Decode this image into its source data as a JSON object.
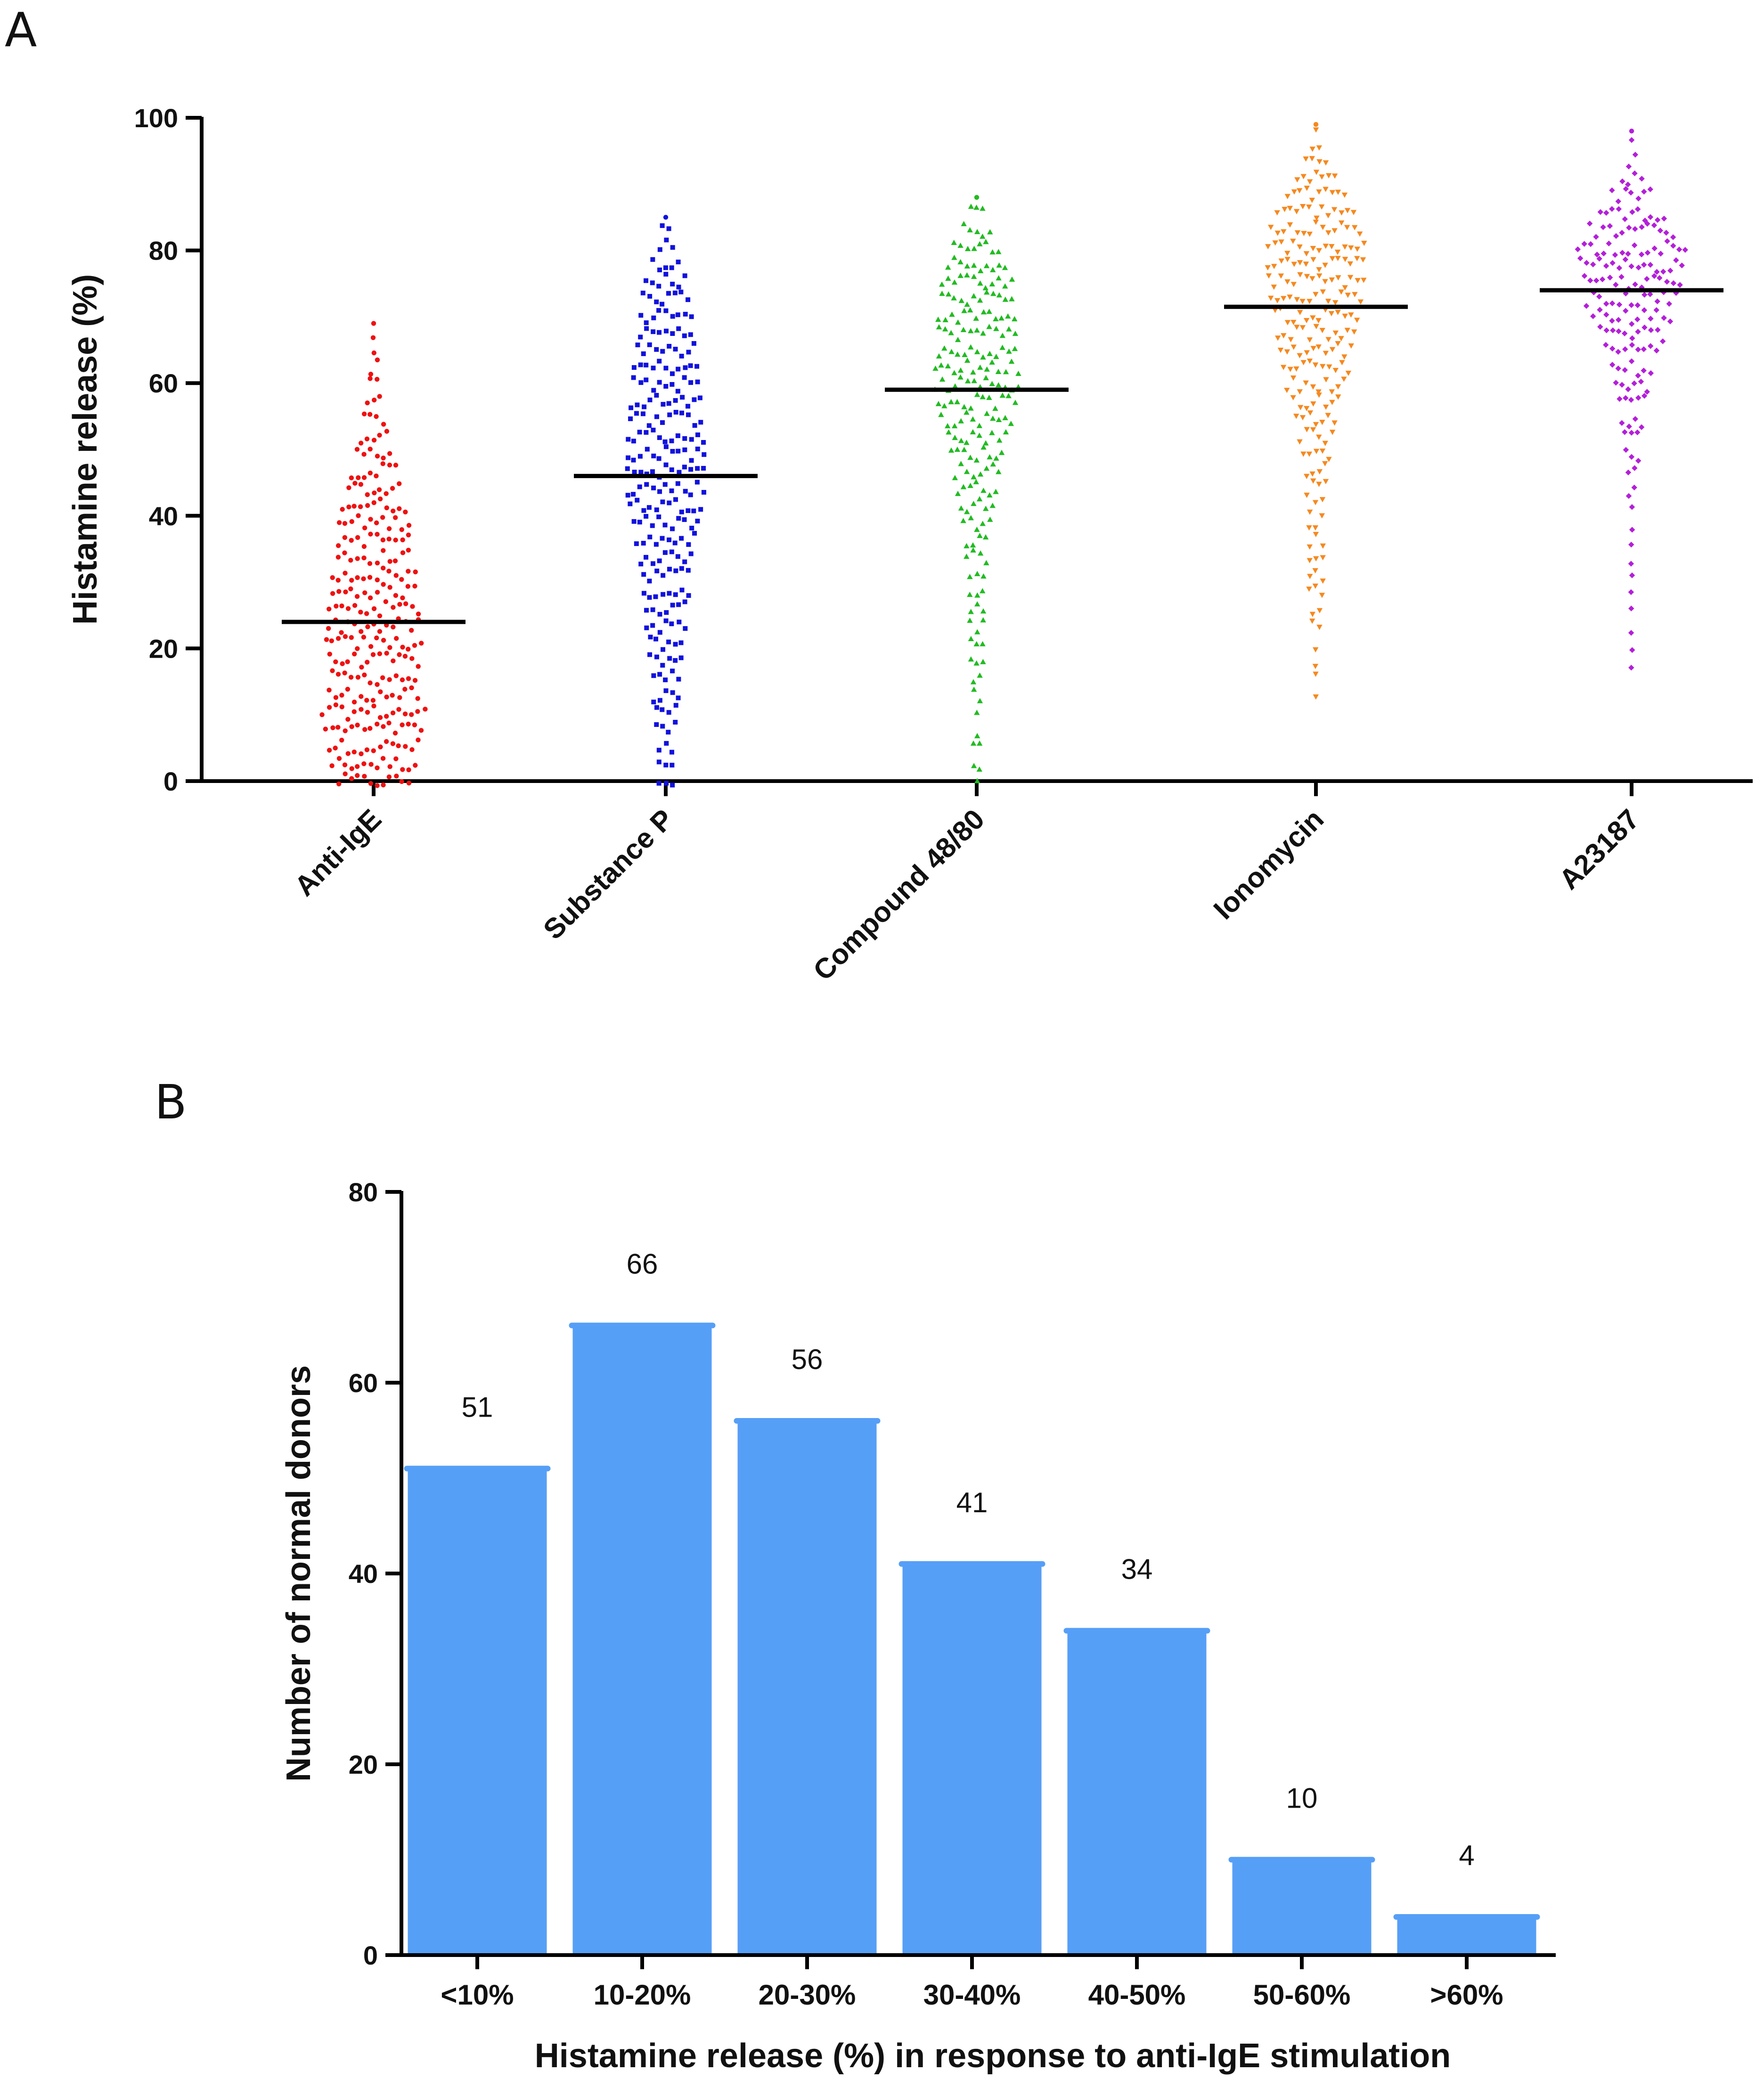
{
  "panels": {
    "a_label": "A",
    "b_label": "B"
  },
  "colors": {
    "axis": "#000000",
    "bar": "#569ff7",
    "median_line": "#000000"
  },
  "chart_data": [
    {
      "id": "A",
      "type": "scatter",
      "subtype": "dot-strip (beeswarm) with median line",
      "ylabel": "Histamine release (%)",
      "ylim": [
        0,
        100
      ],
      "yticks": [
        0,
        20,
        40,
        60,
        80,
        100
      ],
      "groups": [
        {
          "name": "Anti-IgE",
          "color": "#ee1111",
          "marker": "circle",
          "median": 24,
          "min": 0,
          "max": 69,
          "n": 262,
          "profile": [
            [
              0,
              12
            ],
            [
              5,
              15
            ],
            [
              10,
              17
            ],
            [
              15,
              14
            ],
            [
              20,
              16
            ],
            [
              25,
              15
            ],
            [
              30,
              14
            ],
            [
              35,
              12
            ],
            [
              40,
              12
            ],
            [
              45,
              9
            ],
            [
              50,
              6
            ],
            [
              55,
              4
            ],
            [
              60,
              2
            ],
            [
              65,
              1
            ],
            [
              69,
              1
            ]
          ]
        },
        {
          "name": "Substance P",
          "color": "#1111dd",
          "marker": "square",
          "median": 46,
          "min": 0,
          "max": 85,
          "n": 262,
          "profile": [
            [
              0,
              3
            ],
            [
              5,
              3
            ],
            [
              10,
              4
            ],
            [
              15,
              5
            ],
            [
              20,
              6
            ],
            [
              25,
              7
            ],
            [
              30,
              8
            ],
            [
              35,
              9
            ],
            [
              40,
              11
            ],
            [
              45,
              13
            ],
            [
              50,
              13
            ],
            [
              55,
              12
            ],
            [
              60,
              11
            ],
            [
              65,
              10
            ],
            [
              70,
              9
            ],
            [
              75,
              7
            ],
            [
              80,
              3
            ],
            [
              85,
              1
            ]
          ]
        },
        {
          "name": "Compound 48/80",
          "color": "#22bb22",
          "marker": "triangle-up",
          "median": 59,
          "min": 0,
          "max": 88,
          "n": 262,
          "profile": [
            [
              0,
              1
            ],
            [
              5,
              2
            ],
            [
              10,
              1
            ],
            [
              15,
              2
            ],
            [
              20,
              3
            ],
            [
              25,
              3
            ],
            [
              30,
              3
            ],
            [
              35,
              4
            ],
            [
              40,
              5
            ],
            [
              45,
              7
            ],
            [
              50,
              9
            ],
            [
              55,
              12
            ],
            [
              60,
              14
            ],
            [
              65,
              13
            ],
            [
              70,
              13
            ],
            [
              75,
              12
            ],
            [
              80,
              8
            ],
            [
              85,
              4
            ],
            [
              88,
              1
            ]
          ]
        },
        {
          "name": "Ionomycin",
          "color": "#f5891f",
          "marker": "triangle-down",
          "median": 71.5,
          "min": 13,
          "max": 99,
          "n": 262,
          "profile": [
            [
              13,
              1
            ],
            [
              20,
              1
            ],
            [
              25,
              2
            ],
            [
              30,
              3
            ],
            [
              35,
              3
            ],
            [
              40,
              3
            ],
            [
              45,
              4
            ],
            [
              50,
              5
            ],
            [
              55,
              7
            ],
            [
              60,
              10
            ],
            [
              65,
              12
            ],
            [
              70,
              14
            ],
            [
              75,
              16
            ],
            [
              80,
              16
            ],
            [
              85,
              14
            ],
            [
              90,
              8
            ],
            [
              95,
              2
            ],
            [
              99,
              1
            ]
          ]
        },
        {
          "name": "A23187",
          "color": "#b41fd9",
          "marker": "diamond",
          "median": 74,
          "min": 18,
          "max": 98,
          "n": 262,
          "profile": [
            [
              18,
              1
            ],
            [
              39,
              1
            ],
            [
              45,
              2
            ],
            [
              50,
              3
            ],
            [
              55,
              4
            ],
            [
              60,
              6
            ],
            [
              65,
              9
            ],
            [
              70,
              13
            ],
            [
              75,
              16
            ],
            [
              80,
              18
            ],
            [
              85,
              12
            ],
            [
              90,
              4
            ],
            [
              95,
              1
            ],
            [
              98,
              1
            ]
          ]
        }
      ]
    },
    {
      "id": "B",
      "type": "bar",
      "categories": [
        "<10%",
        "10-20%",
        "20-30%",
        "30-40%",
        "40-50%",
        "50-60%",
        ">60%"
      ],
      "values": [
        51,
        66,
        56,
        41,
        34,
        10,
        4
      ],
      "value_labels": [
        "51",
        "66",
        "56",
        "41",
        "34",
        "10",
        "4"
      ],
      "xlabel": "Histamine release (%) in response to anti-IgE stimulation",
      "ylabel": "Number of normal donors",
      "ylim": [
        0,
        80
      ],
      "yticks": [
        0,
        20,
        40,
        60,
        80
      ]
    }
  ]
}
